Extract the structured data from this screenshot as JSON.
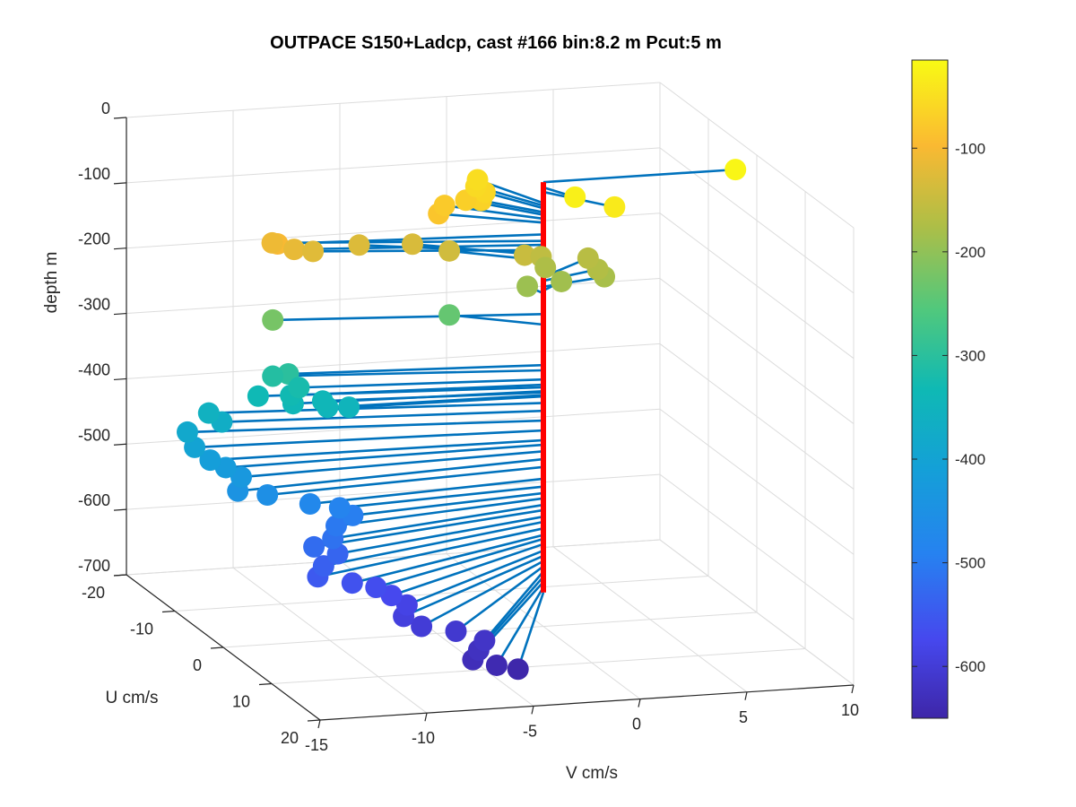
{
  "chart_data": {
    "type": "scatter",
    "title": "OUTPACE S150+Ladcp, cast #166 bin:8.2 m  Pcut:5 m",
    "xlabel": "V cm/s",
    "ylabel": "U cm/s",
    "zlabel": "depth m",
    "xlim": [
      -15,
      10
    ],
    "ylim": [
      -20,
      20
    ],
    "zlim": [
      -700,
      0
    ],
    "xticks": [
      "-15",
      "-10",
      "-5",
      "0",
      "5",
      "10"
    ],
    "yticks": [
      "-20",
      "-10",
      "0",
      "10",
      "20"
    ],
    "zticks": [
      "0",
      "-100",
      "-200",
      "-300",
      "-400",
      "-500",
      "-600",
      "-700"
    ],
    "colorbar": {
      "ticks": [
        "-100",
        "-200",
        "-300",
        "-400",
        "-500",
        "-600"
      ],
      "range": [
        -650,
        -15
      ],
      "colormap": "parula"
    },
    "grid": true,
    "reference_line_color": "#ff0000",
    "stick_color": "#0072bd",
    "points": [
      {
        "v": 9.0,
        "u": 0.0,
        "depth": -20
      },
      {
        "v": 0.8,
        "u": 3.0,
        "depth": -28
      },
      {
        "v": 2.2,
        "u": 5.0,
        "depth": -35
      },
      {
        "v": -1.5,
        "u": -7.0,
        "depth": -52
      },
      {
        "v": -1.8,
        "u": -6.0,
        "depth": -56
      },
      {
        "v": -1.6,
        "u": -5.0,
        "depth": -60
      },
      {
        "v": -2.0,
        "u": -4.0,
        "depth": -66
      },
      {
        "v": -2.5,
        "u": -5.0,
        "depth": -70
      },
      {
        "v": -3.5,
        "u": -5.0,
        "depth": -76
      },
      {
        "v": -4.0,
        "u": -4.0,
        "depth": -82
      },
      {
        "v": -12.0,
        "u": -2.0,
        "depth": -100
      },
      {
        "v": -11.8,
        "u": -4.0,
        "depth": -110
      },
      {
        "v": -11.0,
        "u": -3.0,
        "depth": -116
      },
      {
        "v": -10.0,
        "u": -3.5,
        "depth": -124
      },
      {
        "v": -7.5,
        "u": -5.0,
        "depth": -128
      },
      {
        "v": -5.0,
        "u": -5.0,
        "depth": -132
      },
      {
        "v": -3.5,
        "u": -4.0,
        "depth": -140
      },
      {
        "v": -0.2,
        "u": -3.0,
        "depth": -148
      },
      {
        "v": 0.8,
        "u": -4.0,
        "depth": -158
      },
      {
        "v": 3.0,
        "u": -4.0,
        "depth": -165
      },
      {
        "v": 3.0,
        "u": -2.0,
        "depth": -171
      },
      {
        "v": 1.0,
        "u": -4.0,
        "depth": -175
      },
      {
        "v": 3.2,
        "u": -1.5,
        "depth": -180
      },
      {
        "v": 1.3,
        "u": -2.0,
        "depth": -186
      },
      {
        "v": -0.3,
        "u": -2.0,
        "depth": -190
      },
      {
        "v": -12.0,
        "u": -3.0,
        "depth": -222
      },
      {
        "v": -3.5,
        "u": -4.0,
        "depth": -238
      },
      {
        "v": -11.5,
        "u": -2.0,
        "depth": -300
      },
      {
        "v": -12.0,
        "u": -3.0,
        "depth": -308
      },
      {
        "v": -11.0,
        "u": -2.0,
        "depth": -322
      },
      {
        "v": -11.5,
        "u": -1.5,
        "depth": -330
      },
      {
        "v": -12.8,
        "u": -2.5,
        "depth": -334
      },
      {
        "v": -11.5,
        "u": -1.0,
        "depth": -340
      },
      {
        "v": -10.0,
        "u": -1.5,
        "depth": -342
      },
      {
        "v": -10.0,
        "u": -0.5,
        "depth": -346
      },
      {
        "v": -9.0,
        "u": -0.5,
        "depth": -348
      },
      {
        "v": -15.0,
        "u": -3.0,
        "depth": -358
      },
      {
        "v": -14.5,
        "u": -2.5,
        "depth": -370
      },
      {
        "v": -16.0,
        "u": -3.0,
        "depth": -385
      },
      {
        "v": -16.0,
        "u": -1.5,
        "depth": -400
      },
      {
        "v": -15.5,
        "u": -0.5,
        "depth": -415
      },
      {
        "v": -15.0,
        "u": 0.5,
        "depth": -422
      },
      {
        "v": -14.5,
        "u": 1.5,
        "depth": -432
      },
      {
        "v": -15.0,
        "u": 3.0,
        "depth": -444
      },
      {
        "v": -13.5,
        "u": 2.5,
        "depth": -456
      },
      {
        "v": -11.5,
        "u": 2.5,
        "depth": -474
      },
      {
        "v": -10.0,
        "u": 2.0,
        "depth": -486
      },
      {
        "v": -9.5,
        "u": 2.5,
        "depth": -496
      },
      {
        "v": -10.5,
        "u": 3.5,
        "depth": -504
      },
      {
        "v": -11.0,
        "u": 5.0,
        "depth": -514
      },
      {
        "v": -12.0,
        "u": 5.5,
        "depth": -522
      },
      {
        "v": -11.0,
        "u": 6.0,
        "depth": -532
      },
      {
        "v": -12.0,
        "u": 7.5,
        "depth": -540
      },
      {
        "v": -12.5,
        "u": 8.5,
        "depth": -550
      },
      {
        "v": -11.0,
        "u": 9.0,
        "depth": -560
      },
      {
        "v": -10.0,
        "u": 9.5,
        "depth": -566
      },
      {
        "v": -9.5,
        "u": 10.5,
        "depth": -574
      },
      {
        "v": -9.0,
        "u": 11.5,
        "depth": -584
      },
      {
        "v": -9.5,
        "u": 13.0,
        "depth": -592
      },
      {
        "v": -9.0,
        "u": 14.5,
        "depth": -600
      },
      {
        "v": -7.5,
        "u": 15.0,
        "depth": -608
      },
      {
        "v": -6.5,
        "u": 16.5,
        "depth": -616
      },
      {
        "v": -7.0,
        "u": 17.5,
        "depth": -624
      },
      {
        "v": -7.5,
        "u": 18.5,
        "depth": -632
      },
      {
        "v": -6.5,
        "u": 19.0,
        "depth": -640
      },
      {
        "v": -5.5,
        "u": 19.0,
        "depth": -648
      }
    ]
  }
}
